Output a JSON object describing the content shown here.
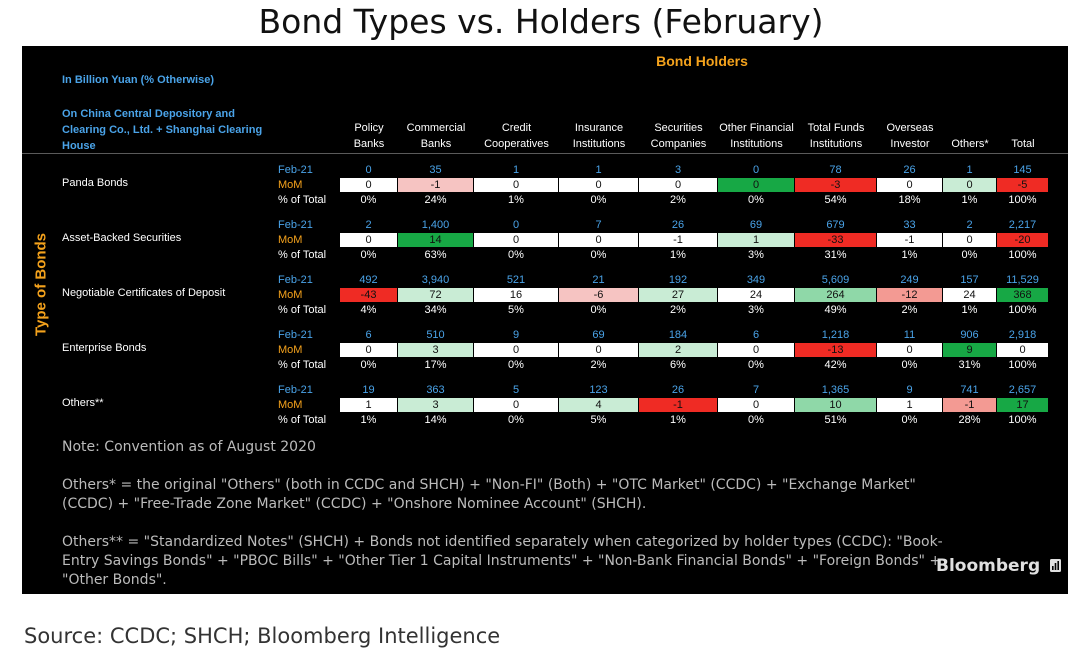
{
  "page": {
    "title": "Bond Types vs. Holders (February)",
    "source": "Source: CCDC; SHCH; Bloomberg Intelligence"
  },
  "chart_data": {
    "type": "table",
    "title": "Bond Holders",
    "unit_note": "In Billion Yuan (% Otherwise)",
    "source_note": "On China Central Depository and Clearing Co., Ltd. + Shanghai Clearing House",
    "row_axis_label": "Type of Bonds",
    "columns": [
      "Policy Banks",
      "Commercial Banks",
      "Credit Cooperatives",
      "Insurance Institutions",
      "Securities Companies",
      "Other Financial Institutions",
      "Total Funds Institutions",
      "Overseas Investor",
      "Others*",
      "Total"
    ],
    "row_labels": {
      "feb": "Feb-21",
      "mom": "MoM",
      "pct": "% of Total"
    },
    "rows": [
      {
        "name": "Panda Bonds",
        "feb": [
          "0",
          "35",
          "1",
          "1",
          "3",
          "0",
          "78",
          "26",
          "1",
          "145"
        ],
        "mom": [
          "0",
          "-1",
          "0",
          "0",
          "0",
          "0",
          "-3",
          "0",
          "0",
          "-5"
        ],
        "pct": [
          "0%",
          "24%",
          "1%",
          "0%",
          "2%",
          "0%",
          "54%",
          "18%",
          "1%",
          "100%"
        ]
      },
      {
        "name": "Asset-Backed Securities",
        "feb": [
          "2",
          "1,400",
          "0",
          "7",
          "26",
          "69",
          "679",
          "33",
          "2",
          "2,217"
        ],
        "mom": [
          "0",
          "14",
          "0",
          "0",
          "-1",
          "1",
          "-33",
          "-1",
          "0",
          "-20"
        ],
        "pct": [
          "0%",
          "63%",
          "0%",
          "0%",
          "1%",
          "3%",
          "31%",
          "1%",
          "0%",
          "100%"
        ]
      },
      {
        "name": "Negotiable Certificates of Deposit",
        "feb": [
          "492",
          "3,940",
          "521",
          "21",
          "192",
          "349",
          "5,609",
          "249",
          "157",
          "11,529"
        ],
        "mom": [
          "-43",
          "72",
          "16",
          "-6",
          "27",
          "24",
          "264",
          "-12",
          "24",
          "368"
        ],
        "pct": [
          "4%",
          "34%",
          "5%",
          "0%",
          "2%",
          "3%",
          "49%",
          "2%",
          "1%",
          "100%"
        ]
      },
      {
        "name": "Enterprise Bonds",
        "feb": [
          "6",
          "510",
          "9",
          "69",
          "184",
          "6",
          "1,218",
          "11",
          "906",
          "2,918"
        ],
        "mom": [
          "0",
          "3",
          "0",
          "0",
          "2",
          "0",
          "-13",
          "0",
          "9",
          "0"
        ],
        "pct": [
          "0%",
          "17%",
          "0%",
          "2%",
          "6%",
          "0%",
          "42%",
          "0%",
          "31%",
          "100%"
        ]
      },
      {
        "name": "Others**",
        "feb": [
          "19",
          "363",
          "5",
          "123",
          "26",
          "7",
          "1,365",
          "9",
          "741",
          "2,657"
        ],
        "mom": [
          "1",
          "3",
          "0",
          "4",
          "-1",
          "0",
          "10",
          "1",
          "-1",
          "17"
        ],
        "pct": [
          "1%",
          "14%",
          "0%",
          "5%",
          "1%",
          "0%",
          "51%",
          "0%",
          "28%",
          "100%"
        ]
      }
    ],
    "mom_colors": {
      "positive": [
        "#c9ecd5",
        "#8fd8a8",
        "#17a845"
      ],
      "negative": [
        "#fbe3e1",
        "#f6c4c2",
        "#f39a93",
        "#ef2b24"
      ],
      "neutral": "#ffffff"
    },
    "mom_shading": [
      [
        "w",
        "lr",
        "w",
        "w",
        "w",
        "g",
        "r",
        "w",
        "lg",
        "r"
      ],
      [
        "w",
        "g",
        "w",
        "w",
        "w",
        "lg",
        "r",
        "w",
        "w",
        "r"
      ],
      [
        "r",
        "lg",
        "w",
        "lr",
        "lg",
        "w",
        "mg",
        "mr",
        "w",
        "g"
      ],
      [
        "w",
        "lg",
        "w",
        "w",
        "lg",
        "w",
        "r",
        "w",
        "g",
        "w"
      ],
      [
        "w",
        "lg",
        "w",
        "lg",
        "r",
        "w",
        "mg",
        "w",
        "mr",
        "g"
      ]
    ]
  },
  "notes": [
    "Note: Convention as of August 2020",
    "Others* = the original \"Others\" (both in CCDC and SHCH) + \"Non-FI\" (Both) + \"OTC Market\" (CCDC) + \"Exchange Market\" (CCDC) + \"Free-Trade Zone Market\" (CCDC) + \"Onshore Nominee Account\" (SHCH).",
    "Others** = \"Standardized Notes\" (SHCH) + Bonds not identified separately when categorized by holder types (CCDC): \"Book-Entry Savings Bonds\" + \"PBOC Bills\" +  \"Other Tier 1 Capital Instruments\" + \"Non-Bank Financial Bonds\" + \"Foreign Bonds\" + \"Other Bonds\"."
  ],
  "brand": "Bloomberg"
}
